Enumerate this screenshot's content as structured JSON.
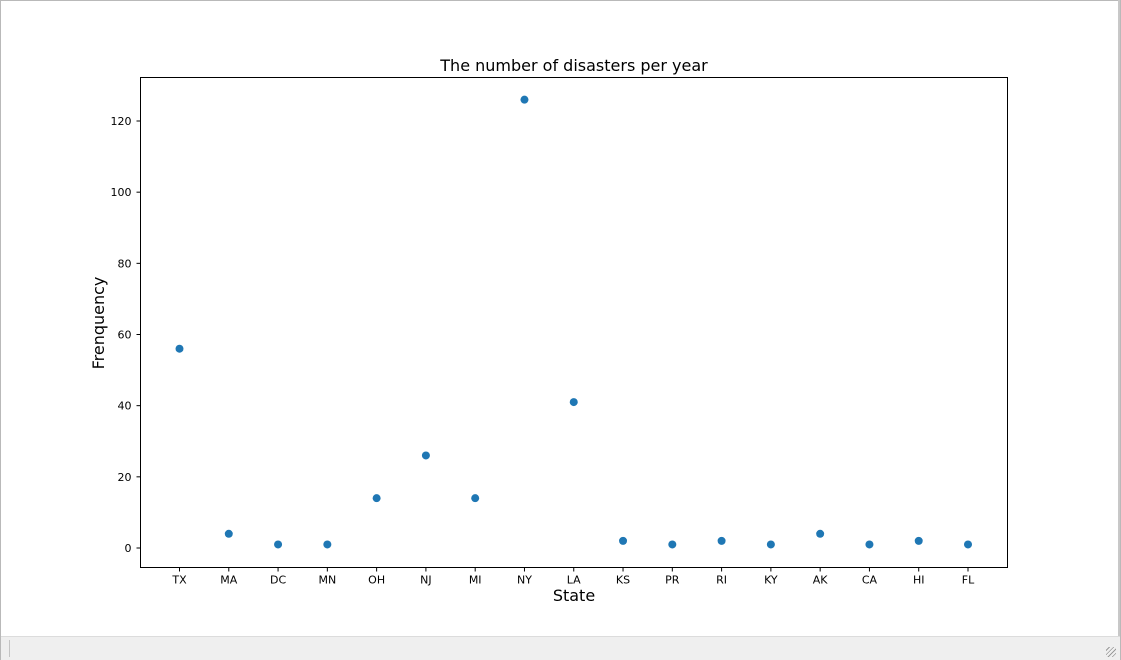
{
  "chart_data": {
    "type": "scatter",
    "title": "The number of disasters per year",
    "xlabel": "State",
    "ylabel": "Frenquency",
    "categories": [
      "TX",
      "MA",
      "DC",
      "MN",
      "OH",
      "NJ",
      "MI",
      "NY",
      "LA",
      "KS",
      "PR",
      "RI",
      "KY",
      "AK",
      "CA",
      "HI",
      "FL"
    ],
    "values": [
      56,
      4,
      1,
      1,
      14,
      26,
      14,
      126,
      41,
      2,
      1,
      2,
      1,
      4,
      1,
      2,
      1
    ],
    "yticks": [
      0,
      20,
      40,
      60,
      80,
      100,
      120
    ],
    "ylim": [
      -5,
      132
    ],
    "grid": false,
    "marker_color": "#1f77b4"
  }
}
